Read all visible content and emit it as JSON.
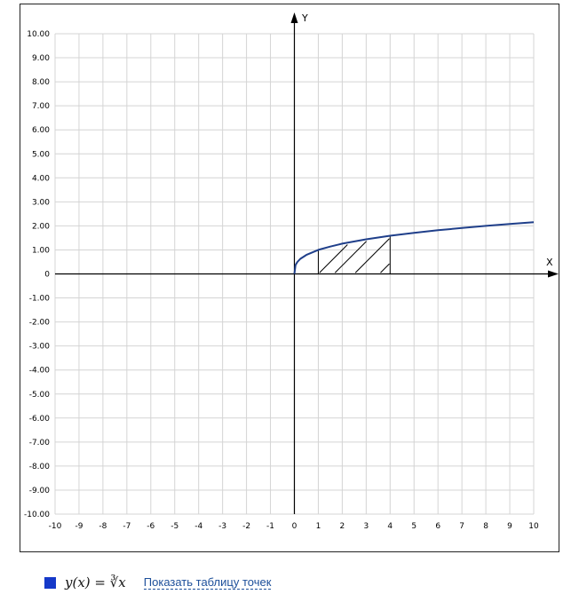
{
  "chart_data": {
    "type": "line",
    "xlabel": "X",
    "ylabel": "Y",
    "xlim": [
      -10,
      10
    ],
    "ylim": [
      -10,
      10
    ],
    "grid": true,
    "x_ticks": [
      "-10",
      "-9",
      "-8",
      "-7",
      "-6",
      "-5",
      "-4",
      "-3",
      "-2",
      "-1",
      "0",
      "1",
      "2",
      "3",
      "4",
      "5",
      "6",
      "7",
      "8",
      "9",
      "10"
    ],
    "y_ticks": [
      "10.00",
      "9.00",
      "8.00",
      "7.00",
      "6.00",
      "5.00",
      "4.00",
      "3.00",
      "2.00",
      "1.00",
      "0",
      "-1.00",
      "-2.00",
      "-3.00",
      "-4.00",
      "-5.00",
      "-6.00",
      "-7.00",
      "-8.00",
      "-9.00",
      "-10.00"
    ],
    "series": [
      {
        "name": "y(x) = ∛x",
        "color": "#1f3f8a",
        "x": [
          0,
          0.05,
          0.125,
          0.25,
          0.5,
          1,
          1.5,
          2,
          3,
          4,
          5,
          6,
          7,
          8,
          9,
          10
        ],
        "y": [
          0,
          0.37,
          0.5,
          0.63,
          0.79,
          1.0,
          1.14,
          1.26,
          1.44,
          1.59,
          1.71,
          1.82,
          1.91,
          2.0,
          2.08,
          2.15
        ]
      }
    ],
    "shaded_region": {
      "x_from": 1,
      "x_to": 4,
      "style": "hatched"
    }
  },
  "legend": {
    "swatch_color": "#1539c9",
    "formula": "y(x) = ∛x",
    "link_text": "Показать таблицу точек"
  }
}
